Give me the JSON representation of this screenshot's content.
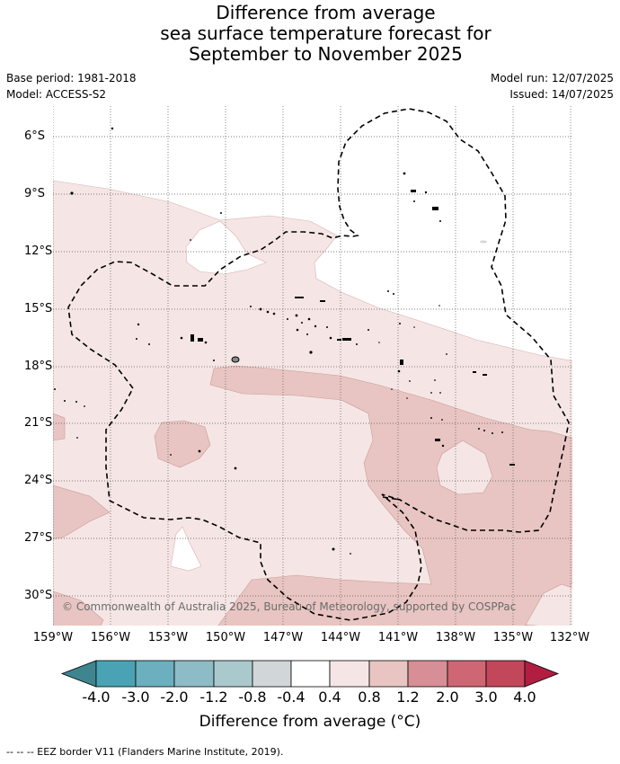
{
  "title_lines": [
    "Difference from average",
    "sea surface temperature forecast for",
    "September to November 2025"
  ],
  "meta": {
    "base_period": "Base period: 1981-2018",
    "model": "Model: ACCESS-S2",
    "model_run": "Model run: 12/07/2025",
    "issued": "Issued: 14/07/2025"
  },
  "map": {
    "lat_ticks": [
      "6°S",
      "9°S",
      "12°S",
      "15°S",
      "18°S",
      "21°S",
      "24°S",
      "27°S",
      "30°S"
    ],
    "lon_ticks": [
      "159°W",
      "156°W",
      "153°W",
      "150°W",
      "147°W",
      "144°W",
      "141°W",
      "138°W",
      "135°W",
      "132°W"
    ],
    "copyright": "© Commonwealth of Australia 2025, Bureau of Meteorology, supported by COSPPac"
  },
  "colorbar": {
    "labels": [
      "-4.0",
      "-3.0",
      "-2.0",
      "-1.2",
      "-0.8",
      "-0.4",
      "0.4",
      "0.8",
      "1.2",
      "2.0",
      "3.0",
      "4.0"
    ],
    "colors": [
      "#3f8590",
      "#4aa3b4",
      "#6cafbf",
      "#8ebcc6",
      "#aac9cd",
      "#d1d7d8",
      "#ffffff",
      "#f5e6e5",
      "#e8c5c2",
      "#d88e96",
      "#cf6674",
      "#c3475a",
      "#b11e40"
    ],
    "title": "Difference from average (°C)"
  },
  "footnote": "-- -- -- EEZ border V11 (Flanders Marine Institute, 2019)."
}
